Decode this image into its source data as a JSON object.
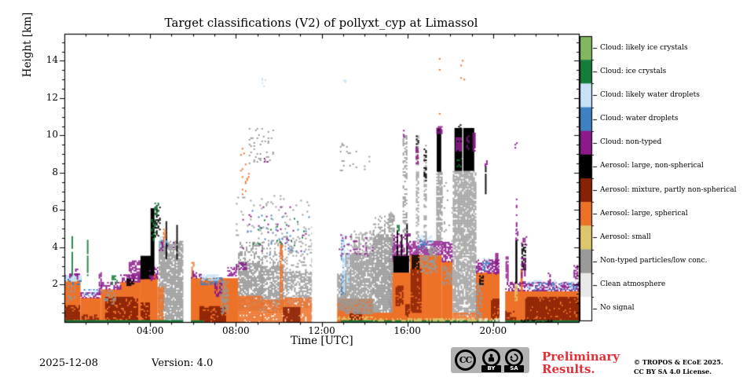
{
  "title": "Target classifications (V2) of pollyxt_cyp at Limassol",
  "footer": {
    "date": "2025-12-08",
    "version_label": "Version: 4.0",
    "preliminary_text": "Preliminary Results.",
    "copyright_line1": "© TROPOS & ECoE 2025.",
    "copyright_line2": "CC BY SA 4.0 License.",
    "cc_badge": {
      "cc": "CC",
      "by": "BY",
      "sa": "SA"
    }
  },
  "chart_data": {
    "type": "heatmap",
    "subtype": "time-height target classification",
    "title": "Target classifications (V2) of pollyxt_cyp at Limassol",
    "xlabel": "Time [UTC]",
    "ylabel": "Height [km]",
    "x_range_hours": [
      0,
      24
    ],
    "y_range_km": [
      0,
      15.45
    ],
    "x_major_ticks": [
      {
        "hour": 4,
        "label": "04:00"
      },
      {
        "hour": 8,
        "label": "08:00"
      },
      {
        "hour": 12,
        "label": "12:00"
      },
      {
        "hour": 16,
        "label": "16:00"
      },
      {
        "hour": 20,
        "label": "20:00"
      }
    ],
    "x_minor_step_hours": 1,
    "y_major_ticks": [
      {
        "km": 2,
        "label": "2"
      },
      {
        "km": 4,
        "label": "4"
      },
      {
        "km": 6,
        "label": "6"
      },
      {
        "km": 8,
        "label": "8"
      },
      {
        "km": 10,
        "label": "10"
      },
      {
        "km": 12,
        "label": "12"
      },
      {
        "km": 14,
        "label": "14"
      }
    ],
    "y_minor_step_km": 0.5,
    "legend_position": "right-colorbar",
    "classes": [
      {
        "id": "li",
        "label": "Cloud: likely ice crystals",
        "color": "#80b860"
      },
      {
        "id": "ic",
        "label": "Cloud: ice crystals",
        "color": "#157d3b"
      },
      {
        "id": "lw",
        "label": "Cloud: likely water droplets",
        "color": "#c5e2f6"
      },
      {
        "id": "wd",
        "label": "Cloud: water droplets",
        "color": "#3e81c3"
      },
      {
        "id": "cn",
        "label": "Cloud: non-typed",
        "color": "#8b1a8b"
      },
      {
        "id": "an",
        "label": "Aerosol: large, non-spherical",
        "color": "#000000"
      },
      {
        "id": "am",
        "label": "Aerosol: mixture, partly non-spherical",
        "color": "#8a2105"
      },
      {
        "id": "as",
        "label": "Aerosol: large, spherical",
        "color": "#ee7128"
      },
      {
        "id": "sm",
        "label": "Aerosol: small",
        "color": "#dcc76d"
      },
      {
        "id": "np",
        "label": "Non-typed particles/low conc.",
        "color": "#9a9a9a"
      },
      {
        "id": "ca",
        "label": "Clean atmosphere",
        "color": "#e9e9e9"
      },
      {
        "id": "ns",
        "label": "No signal",
        "color": "#ffffff"
      }
    ],
    "data_gaps_hours": [
      [
        5.55,
        5.9
      ],
      [
        11.55,
        12.72
      ],
      [
        20.3,
        20.56
      ]
    ],
    "feature_format": [
      "class_id",
      "t_start_h",
      "t_end_h",
      "h_bottom_km",
      "h_top_km",
      "density"
    ],
    "features": [
      [
        "as",
        0.0,
        0.75,
        0,
        2.25,
        1
      ],
      [
        "am",
        0.0,
        0.7,
        0,
        0.9,
        0.85
      ],
      [
        "np",
        0.15,
        0.5,
        1.1,
        2.0,
        0.3
      ],
      [
        "wd",
        0.0,
        0.8,
        2.05,
        2.4,
        0.35
      ],
      [
        "lw",
        0.0,
        0.75,
        2.2,
        2.5,
        0.55
      ],
      [
        "cn",
        0.0,
        0.8,
        2.35,
        2.6,
        0.3
      ],
      [
        "ic",
        0.33,
        0.4,
        2.5,
        4.6,
        0.9
      ],
      [
        "cn",
        0.5,
        0.6,
        2.2,
        2.95,
        0.6
      ],
      [
        "as",
        0.75,
        1.7,
        0,
        1.3,
        1
      ],
      [
        "am",
        0.8,
        1.6,
        0,
        0.4,
        0.6
      ],
      [
        "cn",
        0.75,
        1.7,
        1.3,
        1.6,
        0.55
      ],
      [
        "wd",
        0.9,
        1.6,
        1.45,
        1.85,
        0.25
      ],
      [
        "lw",
        0.9,
        1.6,
        1.4,
        1.75,
        0.2
      ],
      [
        "ic",
        1.05,
        1.12,
        2.5,
        4.4,
        0.9
      ],
      [
        "cn",
        1.6,
        1.7,
        1.5,
        2.75,
        0.65
      ],
      [
        "as",
        1.7,
        2.6,
        0,
        1.75,
        1
      ],
      [
        "as",
        2.6,
        3.55,
        0,
        2.15,
        1
      ],
      [
        "am",
        1.9,
        3.4,
        0,
        1.35,
        0.85
      ],
      [
        "np",
        1.75,
        2.4,
        1.0,
        1.7,
        0.3
      ],
      [
        "cn",
        1.7,
        2.6,
        1.75,
        2.15,
        0.6
      ],
      [
        "cn",
        2.6,
        3.55,
        2.15,
        2.55,
        0.6
      ],
      [
        "ic",
        2.2,
        2.45,
        2.0,
        2.5,
        0.5
      ],
      [
        "an",
        2.9,
        3.2,
        2.0,
        2.35,
        0.5
      ],
      [
        "as",
        3.55,
        4.35,
        0,
        2.55,
        1
      ],
      [
        "am",
        3.55,
        3.95,
        0,
        1.05,
        0.75
      ],
      [
        "cn",
        3.0,
        3.7,
        2.3,
        3.3,
        0.7
      ],
      [
        "an",
        3.55,
        4.05,
        2.3,
        3.55,
        1
      ],
      [
        "cn",
        3.95,
        4.35,
        2.2,
        2.95,
        0.5
      ],
      [
        "an",
        4.02,
        4.2,
        2.5,
        6.1,
        1
      ],
      [
        "ic",
        4.05,
        4.2,
        4.4,
        5.6,
        0.45
      ],
      [
        "an",
        4.2,
        4.45,
        4.6,
        6.35,
        0.4
      ],
      [
        "ic",
        4.2,
        4.4,
        5.7,
        6.4,
        0.3
      ],
      [
        "ns",
        4.38,
        5.55,
        0,
        4.5,
        1
      ],
      [
        "np",
        4.4,
        5.52,
        0,
        4.35,
        0.85
      ],
      [
        "as",
        4.35,
        4.6,
        0,
        1.9,
        0.9
      ],
      [
        "lw",
        4.45,
        4.8,
        4.2,
        4.6,
        0.6
      ],
      [
        "wd",
        4.5,
        4.85,
        4.0,
        4.4,
        0.3
      ],
      [
        "cn",
        4.4,
        5.1,
        3.8,
        4.3,
        0.25
      ],
      [
        "an",
        4.72,
        4.78,
        3.4,
        5.4,
        0.95
      ],
      [
        "as",
        4.6,
        4.7,
        4.3,
        5.0,
        0.5
      ],
      [
        "an",
        5.22,
        5.28,
        3.4,
        5.2,
        0.9
      ],
      [
        "as",
        5.9,
        8.1,
        0,
        2.35,
        1
      ],
      [
        "as",
        5.92,
        6.02,
        2.35,
        3.3,
        0.7
      ],
      [
        "am",
        6.3,
        7.5,
        0,
        0.85,
        0.85
      ],
      [
        "wd",
        6.35,
        7.35,
        2.0,
        2.4,
        0.5
      ],
      [
        "lw",
        6.4,
        7.2,
        2.25,
        2.55,
        0.65
      ],
      [
        "cn",
        5.9,
        6.4,
        2.35,
        2.75,
        0.4
      ],
      [
        "cn",
        7.0,
        7.35,
        1.4,
        2.1,
        0.65
      ],
      [
        "np",
        7.3,
        7.65,
        0.5,
        2.2,
        0.55
      ],
      [
        "cn",
        7.6,
        8.15,
        2.45,
        2.95,
        0.5
      ],
      [
        "np",
        8.1,
        9.2,
        0.7,
        3.25,
        0.8
      ],
      [
        "np",
        8.1,
        9.2,
        3.25,
        4.3,
        0.3
      ],
      [
        "as",
        8.1,
        9.2,
        0,
        1.4,
        0.95
      ],
      [
        "cn",
        8.0,
        8.5,
        2.7,
        3.2,
        0.45
      ],
      [
        "np",
        9.2,
        10.2,
        0.5,
        3.0,
        0.7
      ],
      [
        "np",
        9.2,
        10.2,
        3.0,
        4.4,
        0.25
      ],
      [
        "as",
        9.2,
        10.2,
        0,
        1.2,
        0.85
      ],
      [
        "as",
        10.05,
        10.16,
        0.5,
        4.2,
        0.8
      ],
      [
        "np",
        10.2,
        11.55,
        0.8,
        2.7,
        0.6
      ],
      [
        "np",
        10.2,
        11.55,
        2.7,
        4.6,
        0.2
      ],
      [
        "as",
        10.2,
        11.55,
        0,
        1.3,
        0.9
      ],
      [
        "am",
        10.2,
        11.0,
        0,
        0.8,
        0.9
      ],
      [
        "np",
        8.0,
        11.55,
        4.5,
        6.8,
        0.04
      ],
      [
        "as",
        8.2,
        8.6,
        6.8,
        9.5,
        0.12
      ],
      [
        "np",
        8.6,
        9.7,
        8.5,
        10.4,
        0.1
      ],
      [
        "wd",
        8.3,
        11.4,
        3.6,
        6.0,
        0.03
      ],
      [
        "cn",
        8.3,
        11.4,
        3.8,
        6.2,
        0.025
      ],
      [
        "ic",
        8.5,
        11.2,
        4.0,
        6.0,
        0.02
      ],
      [
        "lw",
        9.2,
        9.45,
        12.6,
        13.1,
        0.15
      ],
      [
        "cn",
        9.3,
        9.5,
        8.5,
        8.8,
        0.15
      ],
      [
        "as",
        12.72,
        14.4,
        0,
        1.25,
        1
      ],
      [
        "sm",
        12.72,
        14.4,
        0.08,
        0.3,
        0.5
      ],
      [
        "am",
        13.3,
        13.85,
        0,
        0.55,
        0.6
      ],
      [
        "np",
        12.72,
        13.1,
        0.6,
        2.6,
        0.8
      ],
      [
        "np",
        13.1,
        14.4,
        0.5,
        3.7,
        0.85
      ],
      [
        "np",
        13.35,
        14.4,
        3.7,
        4.9,
        0.35
      ],
      [
        "wd",
        12.9,
        13.0,
        1.5,
        4.4,
        0.4
      ],
      [
        "lw",
        12.95,
        13.06,
        1.6,
        4.7,
        0.65
      ],
      [
        "lw",
        13.16,
        13.24,
        2.0,
        4.3,
        0.45
      ],
      [
        "cn",
        12.8,
        14.4,
        3.6,
        4.7,
        0.12
      ],
      [
        "np",
        12.85,
        13.6,
        8.0,
        9.6,
        0.08
      ],
      [
        "np",
        13.9,
        14.35,
        8.2,
        8.9,
        0.06
      ],
      [
        "lw",
        13.0,
        13.12,
        12.85,
        13.15,
        0.3
      ],
      [
        "np",
        14.4,
        15.35,
        0.4,
        4.7,
        0.85
      ],
      [
        "np",
        14.4,
        15.35,
        4.7,
        5.7,
        0.3
      ],
      [
        "as",
        14.4,
        15.35,
        0,
        0.5,
        1
      ],
      [
        "np",
        15.12,
        15.35,
        0.5,
        5.9,
        0.5
      ],
      [
        "as",
        15.3,
        16.12,
        0,
        2.65,
        1
      ],
      [
        "am",
        15.45,
        15.8,
        0.9,
        1.95,
        0.85
      ],
      [
        "am",
        15.9,
        16.08,
        0.35,
        0.95,
        0.6
      ],
      [
        "cn",
        15.3,
        16.12,
        3.3,
        4.15,
        0.6
      ],
      [
        "an",
        15.35,
        16.08,
        2.65,
        3.55,
        1
      ],
      [
        "an",
        15.5,
        15.57,
        3.55,
        4.9,
        1
      ],
      [
        "an",
        15.7,
        15.77,
        3.55,
        4.7,
        1
      ],
      [
        "an",
        15.95,
        16.02,
        3.55,
        5.3,
        1
      ],
      [
        "ic",
        15.5,
        15.62,
        4.9,
        5.2,
        0.5
      ],
      [
        "cn",
        15.35,
        16.12,
        4.15,
        4.75,
        0.3
      ],
      [
        "np",
        15.78,
        15.95,
        4.7,
        10.1,
        0.5
      ],
      [
        "cn",
        15.8,
        15.93,
        9.8,
        10.3,
        0.5
      ],
      [
        "as",
        16.12,
        17.6,
        0,
        3.6,
        1
      ],
      [
        "am",
        16.15,
        16.6,
        0.5,
        2.85,
        0.9
      ],
      [
        "an",
        16.2,
        16.55,
        2.85,
        3.6,
        0.85
      ],
      [
        "cn",
        16.1,
        17.6,
        3.6,
        4.35,
        0.7
      ],
      [
        "lw",
        16.55,
        17.15,
        4.2,
        4.65,
        0.5
      ],
      [
        "wd",
        16.5,
        17.1,
        4.0,
        4.45,
        0.3
      ],
      [
        "np",
        16.6,
        17.35,
        2.6,
        4.0,
        0.45
      ],
      [
        "np",
        16.4,
        16.52,
        4.35,
        10.0,
        0.5
      ],
      [
        "an",
        16.4,
        16.52,
        8.9,
        10.0,
        0.45
      ],
      [
        "cn",
        16.38,
        16.52,
        8.5,
        9.4,
        0.5
      ],
      [
        "np",
        16.76,
        16.86,
        4.35,
        9.5,
        0.45
      ],
      [
        "an",
        16.76,
        16.86,
        7.5,
        9.3,
        0.35
      ],
      [
        "np",
        17.35,
        17.62,
        4.4,
        8.05,
        0.75
      ],
      [
        "an",
        17.37,
        17.58,
        8.05,
        10.4,
        1
      ],
      [
        "cn",
        17.35,
        17.6,
        10.1,
        10.5,
        0.7
      ],
      [
        "as",
        17.4,
        17.55,
        10.9,
        14.4,
        0.05
      ],
      [
        "as",
        17.6,
        18.12,
        0,
        3.25,
        1
      ],
      [
        "np",
        17.6,
        18.12,
        2.0,
        3.0,
        0.4
      ],
      [
        "cn",
        17.6,
        18.16,
        3.25,
        4.3,
        0.7
      ],
      [
        "np",
        17.62,
        18.1,
        4.3,
        7.5,
        0.06
      ],
      [
        "ns",
        18.12,
        19.16,
        0,
        8.1,
        1
      ],
      [
        "np",
        18.12,
        19.16,
        0.4,
        8.1,
        0.8
      ],
      [
        "as",
        18.12,
        19.16,
        0,
        0.5,
        0.85
      ],
      [
        "an",
        18.2,
        19.12,
        8.1,
        10.4,
        1
      ],
      [
        "an",
        18.3,
        18.5,
        10.4,
        10.6,
        0.6
      ],
      [
        "cn",
        18.25,
        18.47,
        9.15,
        9.9,
        0.85
      ],
      [
        "cn",
        18.75,
        18.87,
        9.3,
        10.0,
        0.6
      ],
      [
        "ic",
        18.3,
        18.62,
        8.25,
        8.8,
        0.15
      ],
      [
        "ns",
        18.56,
        18.61,
        8.05,
        10.55,
        1
      ],
      [
        "cn",
        19.04,
        19.18,
        9.2,
        10.15,
        0.9
      ],
      [
        "as",
        18.4,
        18.62,
        10.8,
        14.3,
        0.04
      ],
      [
        "as",
        17.85,
        18.05,
        11.8,
        13.6,
        0.03
      ],
      [
        "as",
        19.2,
        20.3,
        0,
        2.65,
        1
      ],
      [
        "np",
        19.2,
        19.45,
        0,
        2.1,
        0.5
      ],
      [
        "cn",
        19.2,
        20.3,
        2.65,
        3.35,
        0.6
      ],
      [
        "an",
        19.35,
        19.52,
        2.05,
        2.5,
        0.7
      ],
      [
        "wd",
        19.5,
        19.8,
        2.8,
        3.25,
        0.4
      ],
      [
        "lw",
        19.55,
        19.85,
        3.0,
        3.45,
        0.4
      ],
      [
        "an",
        19.62,
        19.68,
        6.9,
        8.45,
        0.85
      ],
      [
        "cn",
        19.6,
        19.7,
        8.4,
        8.75,
        0.4
      ],
      [
        "am",
        19.9,
        20.28,
        0,
        1.25,
        0.85
      ],
      [
        "cn",
        20.1,
        20.2,
        2.6,
        3.7,
        0.7
      ],
      [
        "as",
        20.56,
        24,
        0,
        1.65,
        1
      ],
      [
        "am",
        21.5,
        24,
        0,
        1.35,
        0.9
      ],
      [
        "am",
        20.56,
        21.0,
        0,
        0.6,
        0.7
      ],
      [
        "cn",
        20.56,
        24,
        1.65,
        2.15,
        0.55
      ],
      [
        "lw",
        21.6,
        23.9,
        1.75,
        2.25,
        0.3
      ],
      [
        "wd",
        21.6,
        23.9,
        1.7,
        2.1,
        0.2
      ],
      [
        "cn",
        20.58,
        20.68,
        2.1,
        3.6,
        0.7
      ],
      [
        "sm",
        21.0,
        21.1,
        1.2,
        2.05,
        0.85
      ],
      [
        "an",
        21.04,
        21.13,
        2.05,
        4.4,
        1
      ],
      [
        "cn",
        21.04,
        21.13,
        4.4,
        4.95,
        0.75
      ],
      [
        "cn",
        21.06,
        21.11,
        4.95,
        6.7,
        0.45
      ],
      [
        "cn",
        21.0,
        21.12,
        9.3,
        9.8,
        0.25
      ],
      [
        "as",
        21.28,
        21.38,
        0,
        2.85,
        1
      ],
      [
        "an",
        21.32,
        21.52,
        2.85,
        4.2,
        0.6
      ],
      [
        "cn",
        21.3,
        21.55,
        4.1,
        4.6,
        0.4
      ],
      [
        "cn",
        21.3,
        21.45,
        2.1,
        3.45,
        0.5
      ],
      [
        "cn",
        22.55,
        22.68,
        2.0,
        2.65,
        0.5
      ],
      [
        "cn",
        23.75,
        23.92,
        2.2,
        3.05,
        0.6
      ],
      [
        "ic",
        0,
        5.55,
        0,
        0.1,
        1
      ],
      [
        "ic",
        5.9,
        6.5,
        0,
        0.09,
        1
      ],
      [
        "ic",
        12.9,
        20.3,
        0,
        0.09,
        1
      ],
      [
        "ic",
        20.56,
        24,
        0,
        0.09,
        1
      ],
      [
        "an",
        21.3,
        22.7,
        0.0,
        0.12,
        0.5
      ],
      [
        "sm",
        14.4,
        20.25,
        0.06,
        0.2,
        0.6
      ],
      [
        "ca",
        19.3,
        20.28,
        0.06,
        0.2,
        0.5
      ]
    ]
  }
}
